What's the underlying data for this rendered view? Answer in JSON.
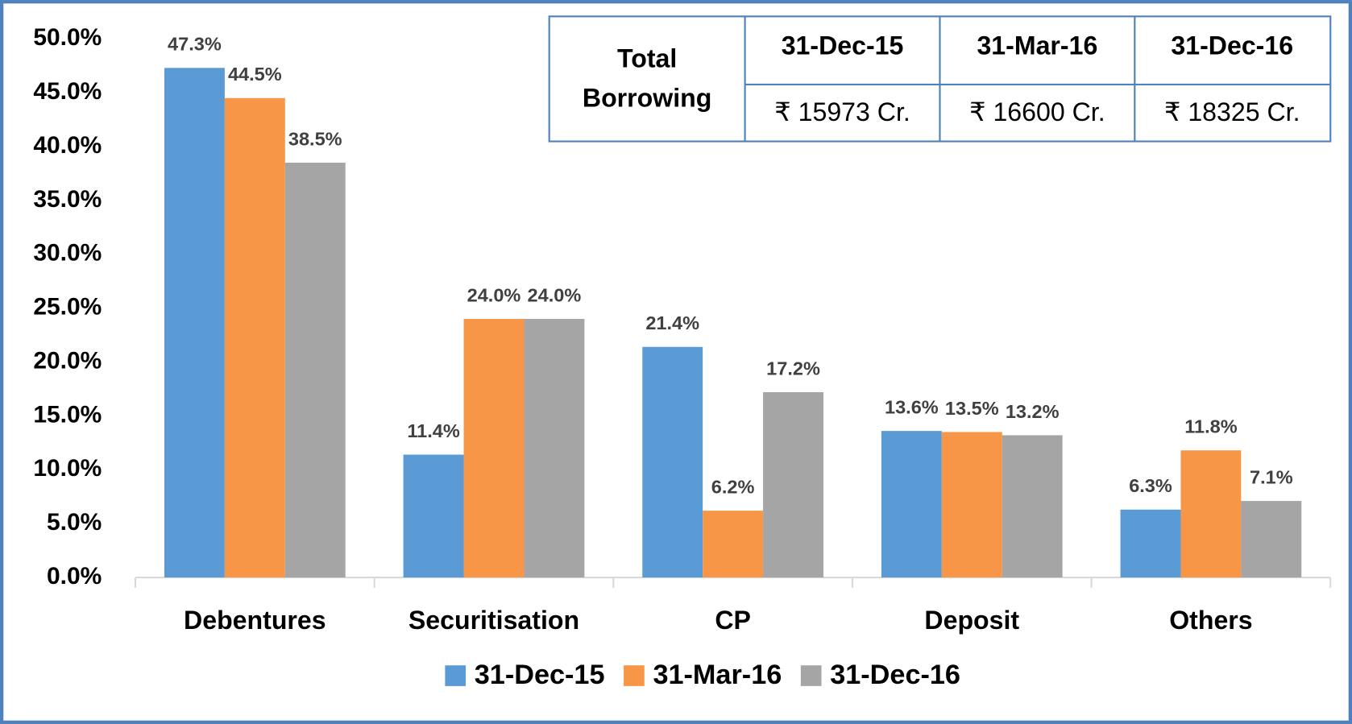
{
  "chart_data": {
    "type": "bar",
    "categories": [
      "Debentures",
      "Securitisation",
      "CP",
      "Deposit",
      "Others"
    ],
    "series": [
      {
        "name": "31-Dec-15",
        "color": "#5b9bd5",
        "values": [
          47.3,
          11.4,
          21.4,
          13.6,
          6.3
        ],
        "value_labels": [
          "47.3%",
          "11.4%",
          "21.4%",
          "13.6%",
          "6.3%"
        ]
      },
      {
        "name": "31-Mar-16",
        "color": "#f79646",
        "values": [
          44.5,
          24.0,
          6.2,
          13.5,
          11.8
        ],
        "value_labels": [
          "44.5%",
          "24.0%",
          "6.2%",
          "13.5%",
          "11.8%"
        ]
      },
      {
        "name": "31-Dec-16",
        "color": "#a5a5a5",
        "values": [
          38.5,
          24.0,
          17.2,
          13.2,
          7.1
        ],
        "value_labels": [
          "38.5%",
          "24.0%",
          "17.2%",
          "13.2%",
          "7.1%"
        ]
      }
    ],
    "ylim": [
      0,
      50
    ],
    "yticks": [
      {
        "value": 0,
        "label": "0.0%"
      },
      {
        "value": 5,
        "label": "5.0%"
      },
      {
        "value": 10,
        "label": "10.0%"
      },
      {
        "value": 15,
        "label": "15.0%"
      },
      {
        "value": 20,
        "label": "20.0%"
      },
      {
        "value": 25,
        "label": "25.0%"
      },
      {
        "value": 30,
        "label": "30.0%"
      },
      {
        "value": 35,
        "label": "35.0%"
      },
      {
        "value": 40,
        "label": "40.0%"
      },
      {
        "value": 45,
        "label": "45.0%"
      },
      {
        "value": 50,
        "label": "50.0%"
      }
    ],
    "grid": false,
    "legend": "bottom"
  },
  "table": {
    "row_header": "Total Borrowing",
    "columns": [
      "31-Dec-15",
      "31-Mar-16",
      "31-Dec-16"
    ],
    "values": [
      "₹ 15973 Cr.",
      "₹ 16600 Cr.",
      "₹ 18325 Cr."
    ]
  }
}
